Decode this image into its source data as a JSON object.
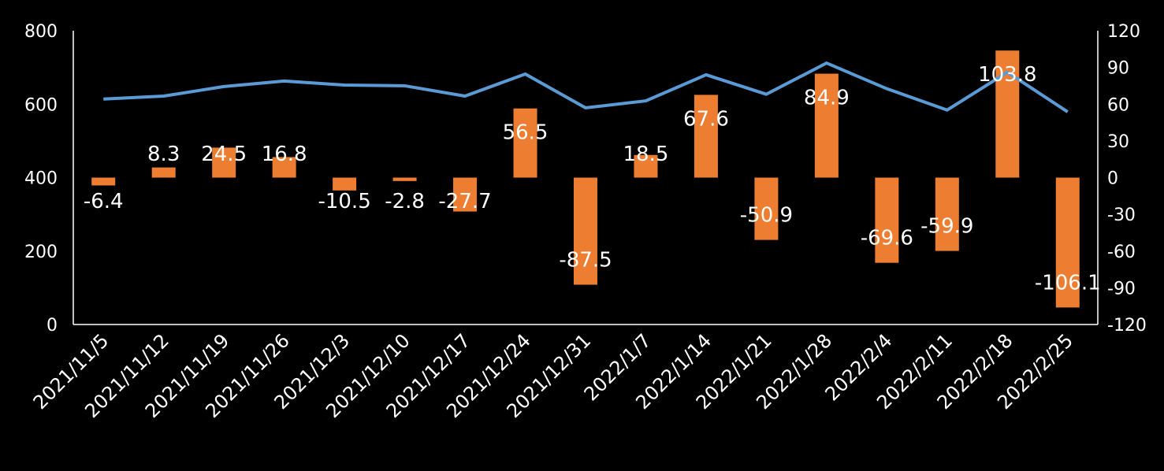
{
  "chart_data": {
    "type": "bar+line",
    "title": "",
    "categories": [
      "2021/11/5",
      "2021/11/12",
      "2021/11/19",
      "2021/11/26",
      "2021/12/3",
      "2021/12/10",
      "2021/12/17",
      "2021/12/24",
      "2021/12/31",
      "2022/1/7",
      "2022/1/14",
      "2022/1/21",
      "2022/1/28",
      "2022/2/4",
      "2022/2/11",
      "2022/2/18",
      "2022/2/25"
    ],
    "series": [
      {
        "name": "bar",
        "type": "bar",
        "axis": "right",
        "color": "#ED7D31",
        "values": [
          -6.4,
          8.3,
          24.5,
          16.8,
          -10.5,
          -2.8,
          -27.7,
          56.5,
          -87.5,
          18.5,
          67.6,
          -50.9,
          84.9,
          -69.6,
          -59.9,
          103.8,
          -106.1
        ],
        "labels": [
          "-6.4",
          "8.3",
          "24.5",
          "16.8",
          "-10.5",
          "-2.8",
          "-27.7",
          "56.5",
          "-87.5",
          "18.5",
          "67.6",
          "-50.9",
          "84.9",
          "-69.6",
          "-59.9",
          "103.8",
          "-106.1"
        ]
      },
      {
        "name": "line",
        "type": "line",
        "axis": "left",
        "color": "#5B9BD5",
        "values": [
          614,
          622,
          648,
          663,
          652,
          650,
          622,
          682,
          590,
          609,
          680,
          627,
          712,
          642,
          584,
          687,
          579
        ]
      }
    ],
    "left_axis": {
      "range": [
        0,
        800
      ],
      "ticks": [
        "0",
        "200",
        "400",
        "600",
        "800"
      ]
    },
    "right_axis": {
      "range": [
        -120,
        120
      ],
      "ticks": [
        "-120",
        "-90",
        "-60",
        "-30",
        "0",
        "30",
        "60",
        "90",
        "120"
      ]
    },
    "grid": false,
    "legend": "none"
  }
}
